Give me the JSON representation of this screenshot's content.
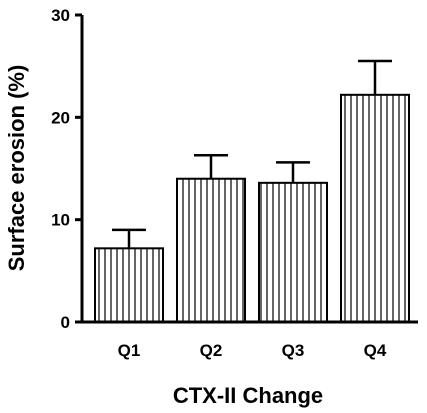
{
  "chart_data": {
    "type": "bar",
    "categories": [
      "Q1",
      "Q2",
      "Q3",
      "Q4"
    ],
    "values": [
      7.2,
      14.0,
      13.6,
      22.2
    ],
    "errors": [
      1.8,
      2.3,
      2.0,
      3.3
    ],
    "xlabel": "CTX-II Change",
    "ylabel": "Surface erosion (%)",
    "ylim": [
      0,
      30
    ],
    "yticks": [
      0,
      10,
      20,
      30
    ],
    "bar_pattern": "vertical-stripes",
    "grid": false
  }
}
